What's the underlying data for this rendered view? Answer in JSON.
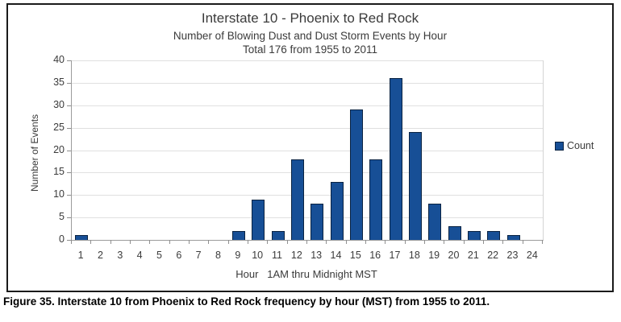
{
  "figure": {
    "caption": "Figure 35. Interstate 10 from Phoenix to Red Rock frequency by hour (MST) from 1955 to 2011."
  },
  "chart_data": {
    "type": "bar",
    "title": "Interstate 10 - Phoenix to Red Rock",
    "subtitle": "Number of Blowing Dust and Dust Storm Events by Hour",
    "subtitle2": "Total 176 from 1955 to 2011",
    "xlabel": "Hour   1AM thru Midnight MST",
    "ylabel": "Number of Events",
    "categories": [
      "1",
      "2",
      "3",
      "4",
      "5",
      "6",
      "7",
      "8",
      "9",
      "10",
      "11",
      "12",
      "13",
      "14",
      "15",
      "16",
      "17",
      "18",
      "19",
      "20",
      "21",
      "22",
      "23",
      "24"
    ],
    "series": [
      {
        "name": "Count",
        "values": [
          1,
          0,
          0,
          0,
          0,
          0,
          0,
          0,
          2,
          9,
          2,
          18,
          8,
          13,
          29,
          18,
          36,
          24,
          8,
          3,
          2,
          2,
          1,
          0
        ]
      }
    ],
    "ylim": [
      0,
      40
    ],
    "ytick_step": 5,
    "grid": true,
    "legend_position": "right",
    "colors": {
      "bar_fill": "#174f96",
      "bar_border": "#0a2342"
    }
  }
}
